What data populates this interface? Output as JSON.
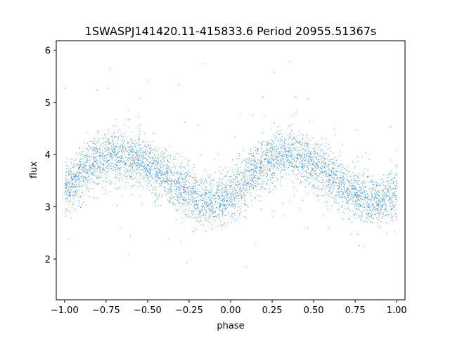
{
  "chart_data": {
    "type": "scatter",
    "title": "1SWASPJ141420.11-415833.6 Period 20955.51367s",
    "xlabel": "phase",
    "ylabel": "flux",
    "xlim": [
      -1.05,
      1.05
    ],
    "ylim": [
      1.22,
      6.18
    ],
    "x_ticks": [
      -1.0,
      -0.75,
      -0.5,
      -0.25,
      0.0,
      0.25,
      0.5,
      0.75,
      1.0
    ],
    "x_tick_labels": [
      "−1.00",
      "−0.75",
      "−0.50",
      "−0.25",
      "0.00",
      "0.25",
      "0.50",
      "0.75",
      "1.00"
    ],
    "y_ticks": [
      2,
      3,
      4,
      5,
      6
    ],
    "y_tick_labels": [
      "2",
      "3",
      "4",
      "5",
      "6"
    ],
    "grid": false,
    "marker_color": "#1f77b4",
    "series": [
      {
        "phase": [
          -1.0,
          -0.9,
          -0.8,
          -0.7,
          -0.6,
          -0.5,
          -0.4,
          -0.3,
          -0.2,
          -0.1,
          0.0,
          0.1,
          0.2,
          0.3,
          0.4,
          0.5,
          0.6,
          0.7,
          0.8,
          0.9,
          1.0
        ],
        "flux": [
          3.3,
          3.65,
          3.9,
          4.0,
          3.95,
          3.8,
          3.6,
          3.35,
          3.15,
          3.05,
          3.2,
          3.55,
          3.85,
          4.0,
          3.95,
          3.8,
          3.6,
          3.35,
          3.15,
          3.1,
          3.25
        ]
      }
    ]
  }
}
